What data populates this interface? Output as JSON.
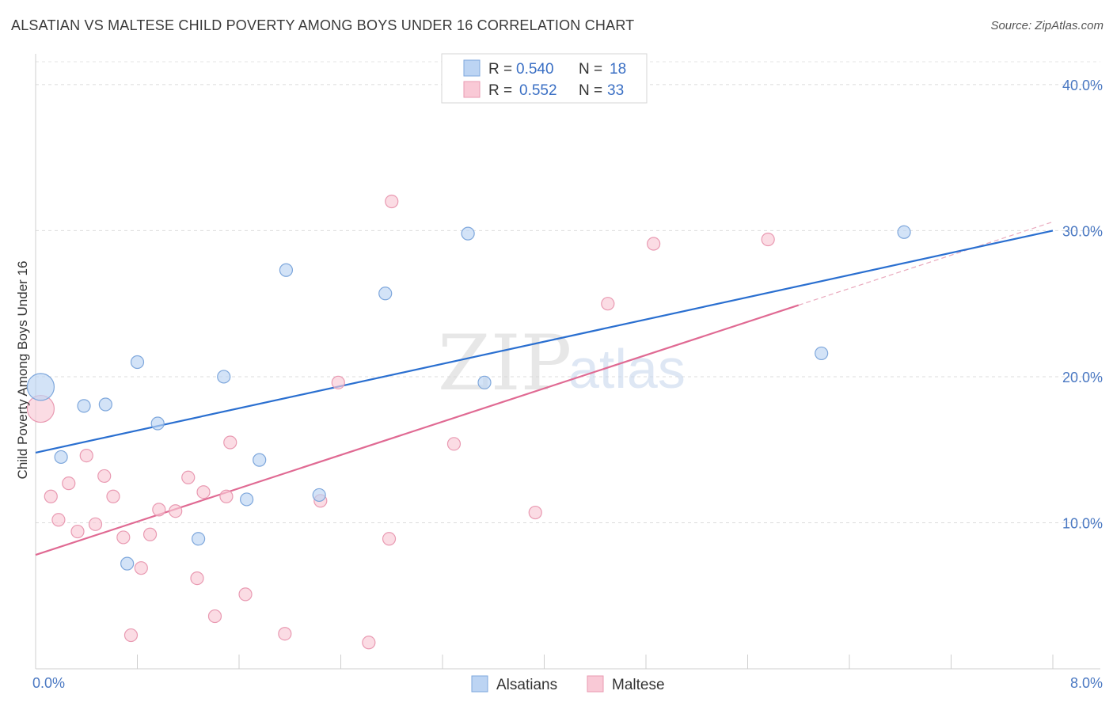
{
  "header": {
    "title": "ALSATIAN VS MALTESE CHILD POVERTY AMONG BOYS UNDER 16 CORRELATION CHART",
    "source": "Source: ZipAtlas.com"
  },
  "watermark": {
    "zip": "ZIP",
    "atlas": "atlas"
  },
  "chart_data": {
    "type": "scatter",
    "title": "ALSATIAN VS MALTESE CHILD POVERTY AMONG BOYS UNDER 16 CORRELATION CHART",
    "xlabel": "",
    "ylabel": "Child Poverty Among Boys Under 16",
    "xlim": [
      0.0,
      8.0
    ],
    "ylim": [
      0.0,
      42.0
    ],
    "x_tick_labels": [
      "0.0%",
      "8.0%"
    ],
    "y_ticks": [
      10,
      20,
      30,
      40
    ],
    "y_tick_labels": [
      "10.0%",
      "20.0%",
      "30.0%",
      "40.0%"
    ],
    "grid": true,
    "legend_position": "top-center",
    "colors": {
      "alsatians_fill": "#bcd4f3",
      "alsatians_stroke": "#7ea7dc",
      "alsatians_line": "#2a6fd0",
      "maltese_fill": "#f9c9d6",
      "maltese_stroke": "#e99ab2",
      "maltese_line": "#e06a93"
    },
    "series": [
      {
        "name": "Alsatians",
        "R": "0.540",
        "N": "18",
        "trend": {
          "x": [
            0.0,
            8.0
          ],
          "y": [
            14.8,
            30.0
          ]
        },
        "points": [
          {
            "x": 0.04,
            "y": 19.3,
            "big": true
          },
          {
            "x": 0.2,
            "y": 14.5
          },
          {
            "x": 0.38,
            "y": 18.0
          },
          {
            "x": 0.55,
            "y": 18.1
          },
          {
            "x": 0.8,
            "y": 21.0
          },
          {
            "x": 0.96,
            "y": 16.8
          },
          {
            "x": 0.72,
            "y": 7.2
          },
          {
            "x": 1.28,
            "y": 8.9
          },
          {
            "x": 1.48,
            "y": 20.0
          },
          {
            "x": 1.66,
            "y": 11.6
          },
          {
            "x": 1.76,
            "y": 14.3
          },
          {
            "x": 1.97,
            "y": 27.3
          },
          {
            "x": 2.23,
            "y": 11.9
          },
          {
            "x": 2.75,
            "y": 25.7
          },
          {
            "x": 3.4,
            "y": 29.8
          },
          {
            "x": 3.53,
            "y": 19.6
          },
          {
            "x": 6.18,
            "y": 21.6
          },
          {
            "x": 6.83,
            "y": 29.9
          }
        ]
      },
      {
        "name": "Maltese",
        "R": "0.552",
        "N": "33",
        "trend": {
          "x": [
            0.0,
            6.0
          ],
          "y": [
            7.8,
            24.9
          ]
        },
        "trend_extension": {
          "x": [
            6.0,
            8.0
          ],
          "y": [
            24.9,
            30.6
          ]
        },
        "points": [
          {
            "x": 0.04,
            "y": 17.8,
            "big": true
          },
          {
            "x": 0.12,
            "y": 11.8
          },
          {
            "x": 0.18,
            "y": 10.2
          },
          {
            "x": 0.26,
            "y": 12.7
          },
          {
            "x": 0.33,
            "y": 9.4
          },
          {
            "x": 0.4,
            "y": 14.6
          },
          {
            "x": 0.47,
            "y": 9.9
          },
          {
            "x": 0.54,
            "y": 13.2
          },
          {
            "x": 0.61,
            "y": 11.8
          },
          {
            "x": 0.69,
            "y": 9.0
          },
          {
            "x": 0.75,
            "y": 2.3
          },
          {
            "x": 0.83,
            "y": 6.9
          },
          {
            "x": 0.9,
            "y": 9.2
          },
          {
            "x": 0.97,
            "y": 10.9
          },
          {
            "x": 1.1,
            "y": 10.8
          },
          {
            "x": 1.2,
            "y": 13.1
          },
          {
            "x": 1.27,
            "y": 6.2
          },
          {
            "x": 1.32,
            "y": 12.1
          },
          {
            "x": 1.41,
            "y": 3.6
          },
          {
            "x": 1.5,
            "y": 11.8
          },
          {
            "x": 1.53,
            "y": 15.5
          },
          {
            "x": 1.65,
            "y": 5.1
          },
          {
            "x": 1.96,
            "y": 2.4
          },
          {
            "x": 2.24,
            "y": 11.5
          },
          {
            "x": 2.38,
            "y": 19.6
          },
          {
            "x": 2.62,
            "y": 1.8
          },
          {
            "x": 2.78,
            "y": 8.9
          },
          {
            "x": 2.8,
            "y": 32.0
          },
          {
            "x": 3.29,
            "y": 15.4
          },
          {
            "x": 3.93,
            "y": 10.7
          },
          {
            "x": 4.5,
            "y": 25.0
          },
          {
            "x": 4.86,
            "y": 29.1
          },
          {
            "x": 5.76,
            "y": 29.4
          }
        ]
      }
    ]
  },
  "legend": {
    "r_label": "R =",
    "n_label": "N =",
    "entries": [
      {
        "name": "Alsatians",
        "R": "0.540",
        "N": "18"
      },
      {
        "name": "Maltese",
        "R": "0.552",
        "N": "33"
      }
    ]
  }
}
